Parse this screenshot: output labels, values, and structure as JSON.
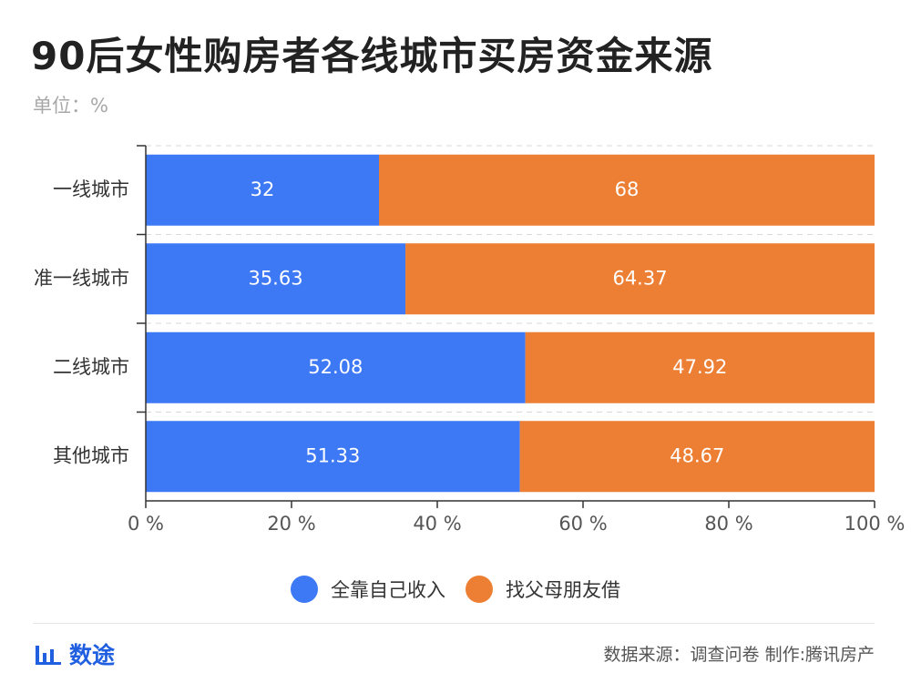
{
  "title": "90后女性购房者各线城市买房资金来源",
  "unit_label": "单位：%",
  "chart_data": {
    "type": "bar",
    "orientation": "horizontal",
    "stacked": true,
    "categories": [
      "一线城市",
      "准一线城市",
      "二线城市",
      "其他城市"
    ],
    "series": [
      {
        "name": "全靠自己收入",
        "color": "#3d78f5",
        "values": [
          32,
          35.63,
          52.08,
          51.33
        ],
        "labels": [
          "32",
          "35.63",
          "52.08",
          "51.33"
        ]
      },
      {
        "name": "找父母朋友借",
        "color": "#ec7f33",
        "values": [
          68,
          64.37,
          47.92,
          48.67
        ],
        "labels": [
          "68",
          "64.37",
          "47.92",
          "48.67"
        ]
      }
    ],
    "xlim": [
      0,
      100
    ],
    "xticks": [
      {
        "value": 0,
        "label": "0 %"
      },
      {
        "value": 20,
        "label": "20 %"
      },
      {
        "value": 40,
        "label": "40 %"
      },
      {
        "value": 60,
        "label": "60 %"
      },
      {
        "value": 80,
        "label": "80 %"
      },
      {
        "value": 100,
        "label": "100 %"
      }
    ],
    "legend_position": "bottom",
    "grid": true
  },
  "footer": {
    "brand": "数途",
    "brand_icon": "bar-chart-icon",
    "source": "数据来源：调查问卷  制作:腾讯房产"
  }
}
